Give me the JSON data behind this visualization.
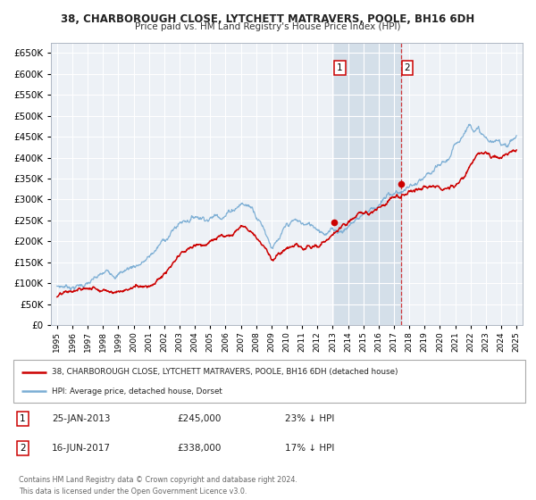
{
  "title": "38, CHARBOROUGH CLOSE, LYTCHETT MATRAVERS, POOLE, BH16 6DH",
  "subtitle": "Price paid vs. HM Land Registry's House Price Index (HPI)",
  "sale1_label": "25-JAN-2013",
  "sale1_price": 245000,
  "sale1_pct": "23% ↓ HPI",
  "sale2_label": "16-JUN-2017",
  "sale2_price": 338000,
  "sale2_pct": "17% ↓ HPI",
  "sale1_x": 2013.07,
  "sale2_x": 2017.46,
  "legend_label1": "38, CHARBOROUGH CLOSE, LYTCHETT MATRAVERS, POOLE, BH16 6DH (detached house)",
  "legend_label2": "HPI: Average price, detached house, Dorset",
  "footer": "Contains HM Land Registry data © Crown copyright and database right 2024.\nThis data is licensed under the Open Government Licence v3.0.",
  "line_color_red": "#cc0000",
  "line_color_blue": "#7aadd4",
  "bg_plot": "#edf1f6",
  "bg_shade": "#d4dfe9",
  "grid_color": "#c8d0da",
  "ylim_max": 675000,
  "ylim_min": 0,
  "xlim_min": 1994.6,
  "xlim_max": 2025.4
}
